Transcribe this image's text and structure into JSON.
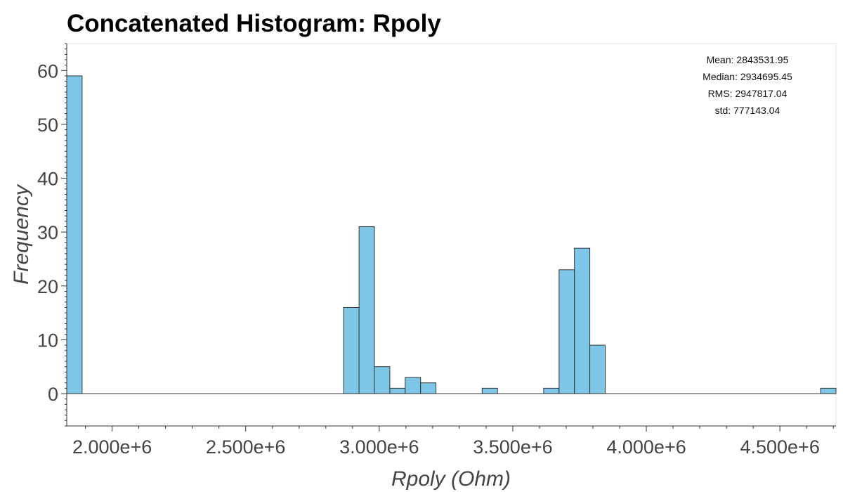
{
  "title": "Concatenated Histogram: Rpoly",
  "chart_data": {
    "type": "bar",
    "title": "Concatenated Histogram: Rpoly",
    "xlabel": "Rpoly (Ohm)",
    "ylabel": "Frequency",
    "xlim": [
      1830000,
      4710000
    ],
    "ylim": [
      -6,
      65
    ],
    "x_ticks": [
      2000000,
      2500000,
      3000000,
      3500000,
      4000000,
      4500000
    ],
    "x_tick_labels": [
      "2.000e+6",
      "2.500e+6",
      "3.000e+6",
      "3.500e+6",
      "4.000e+6",
      "4.500e+6"
    ],
    "y_ticks": [
      0,
      10,
      20,
      30,
      40,
      50,
      60
    ],
    "y_tick_labels": [
      "0",
      "10",
      "20",
      "30",
      "40",
      "50",
      "60"
    ],
    "bin_edges": [
      1830000,
      1887600,
      1945200,
      2002800,
      2060400,
      2118000,
      2175600,
      2233200,
      2290800,
      2348400,
      2406000,
      2463600,
      2521200,
      2578800,
      2636400,
      2694000,
      2751600,
      2809200,
      2866800,
      2924400,
      2982000,
      3039600,
      3097200,
      3154800,
      3212400,
      3270000,
      3327600,
      3385200,
      3442800,
      3500400,
      3558000,
      3615600,
      3673200,
      3730800,
      3788400,
      3846000,
      3903600,
      3961200,
      4018800,
      4076400,
      4134000,
      4191600,
      4249200,
      4306800,
      4364400,
      4422000,
      4479600,
      4537200,
      4594800,
      4652400,
      4710000
    ],
    "counts": [
      59,
      0,
      0,
      0,
      0,
      0,
      0,
      0,
      0,
      0,
      0,
      0,
      0,
      0,
      0,
      0,
      0,
      0,
      16,
      31,
      5,
      1,
      3,
      2,
      0,
      0,
      0,
      1,
      0,
      0,
      0,
      1,
      23,
      27,
      9,
      0,
      0,
      0,
      0,
      0,
      0,
      0,
      0,
      0,
      0,
      0,
      0,
      0,
      0,
      1
    ],
    "grid": false,
    "bar_color": "#7EC6E8",
    "bar_edge_color": "#333333"
  },
  "stats": {
    "mean": "Mean: 2843531.95",
    "median": "Median: 2934695.45",
    "rms": "RMS: 2947817.04",
    "std": "std: 777143.04"
  }
}
